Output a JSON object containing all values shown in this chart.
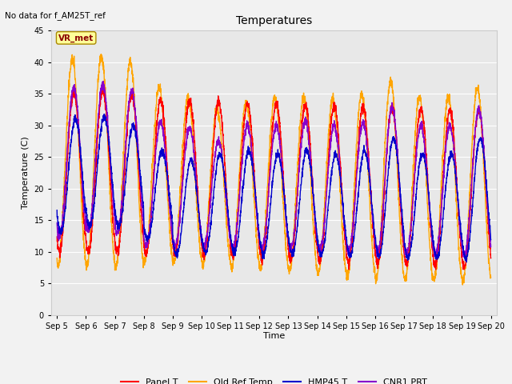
{
  "title": "Temperatures",
  "ylabel": "Temperature (C)",
  "xlabel": "Time",
  "annotation_text": "No data for f_AM25T_ref",
  "vr_met_label": "VR_met",
  "ylim": [
    0,
    45
  ],
  "x_tick_labels": [
    "Sep 5",
    "Sep 6",
    "Sep 7",
    "Sep 8",
    "Sep 9",
    "Sep 10",
    "Sep 11",
    "Sep 12",
    "Sep 13",
    "Sep 14",
    "Sep 15",
    "Sep 16",
    "Sep 17",
    "Sep 18",
    "Sep 19",
    "Sep 20"
  ],
  "legend_entries": [
    "Panel T",
    "Old Ref Temp",
    "HMP45 T",
    "CNR1 PRT"
  ],
  "line_colors": [
    "#ff0000",
    "#ffa500",
    "#0000cc",
    "#8800cc"
  ],
  "fig_bg_color": "#f2f2f2",
  "plot_bg_color": "#e8e8e8"
}
